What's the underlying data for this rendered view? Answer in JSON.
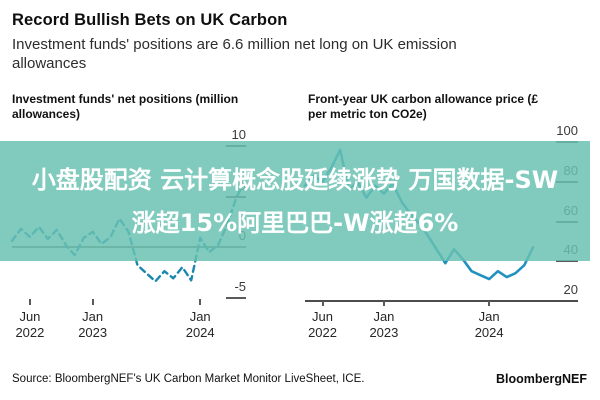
{
  "header": {
    "title": "Record Bullish Bets on UK Carbon",
    "subtitle": "Investment funds' positions are 6.6 million net long on UK emission\nallowances"
  },
  "overlay": {
    "line1": "小盘股配资 云计算概念股延续涨势 万国数据-SW",
    "line2": "涨超15%阿里巴巴-W涨超6%",
    "background_color": "#81cbbe",
    "text_color": "#ffffff"
  },
  "footer": {
    "source": "Source: BloombergNEF's UK Carbon Market Monitor LiveSheet, ICE.",
    "brand": "BloombergNEF"
  },
  "chart_data": [
    {
      "type": "line",
      "style": "dashed",
      "title": "Investment funds' net positions (million\nallowances)",
      "line_color": "#1b87ae",
      "x": [
        "Apr 2022",
        "May 2022",
        "Jun 2022",
        "Jul 2022",
        "Aug 2022",
        "Sep 2022",
        "Oct 2022",
        "Nov 2022",
        "Dec 2022",
        "Jan 2023",
        "Feb 2023",
        "Mar 2023",
        "Apr 2023",
        "May 2023",
        "Jun 2023",
        "Jul 2023",
        "Aug 2023",
        "Sep 2023",
        "Oct 2023",
        "Nov 2023",
        "Dec 2023",
        "Jan 2024",
        "Feb 2024",
        "Mar 2024",
        "Apr 2024",
        "May 2024",
        "Jun 2024"
      ],
      "values": [
        0.6,
        1.8,
        1.0,
        2.0,
        0.8,
        1.7,
        0.2,
        -0.8,
        0.9,
        1.5,
        0.3,
        1.0,
        2.8,
        1.5,
        -1.8,
        -2.6,
        -3.4,
        -2.4,
        -3.1,
        -2.0,
        -3.3,
        0.9,
        -0.5,
        0.2,
        2.2,
        4.8,
        6.6
      ],
      "latest_value": 6.6,
      "ylim": [
        -6,
        11
      ],
      "grid": false,
      "zero_line": true,
      "yticks": [
        {
          "label": "10",
          "value": 10,
          "tick": true
        },
        {
          "label": "5",
          "value": 5,
          "tick": true
        },
        {
          "label": "0",
          "value": 0,
          "tick": false
        },
        {
          "label": "-5",
          "value": -5,
          "tick": true
        }
      ],
      "xticks": [
        {
          "label": "Jun\n2022",
          "month_index": 2
        },
        {
          "label": "Jan\n2023",
          "month_index": 9
        },
        {
          "label": "Jan\n2024",
          "month_index": 21
        }
      ]
    },
    {
      "type": "line",
      "style": "solid",
      "title": "Front-year UK carbon allowance price (£\nper metric ton CO2e)",
      "line_color": "#2191c0",
      "x": [
        "Apr 2022",
        "May 2022",
        "Jun 2022",
        "Jul 2022",
        "Aug 2022",
        "Sep 2022",
        "Oct 2022",
        "Nov 2022",
        "Dec 2022",
        "Jan 2023",
        "Feb 2023",
        "Mar 2023",
        "Apr 2023",
        "May 2023",
        "Jun 2023",
        "Jul 2023",
        "Aug 2023",
        "Sep 2023",
        "Oct 2023",
        "Nov 2023",
        "Dec 2023",
        "Jan 2024",
        "Feb 2024",
        "Mar 2024",
        "Apr 2024",
        "May 2024",
        "Jun 2024"
      ],
      "values": [
        78,
        83,
        80,
        87,
        96,
        76,
        80,
        72,
        78,
        74,
        79,
        70,
        64,
        59,
        53,
        46,
        39,
        46,
        41,
        35,
        33,
        31,
        35,
        32,
        34,
        38,
        47
      ],
      "ylim": [
        20,
        105
      ],
      "grid": false,
      "bottom_axis": true,
      "yticks": [
        {
          "label": "100",
          "value": 100,
          "tick": true
        },
        {
          "label": "80",
          "value": 80,
          "tick": true
        },
        {
          "label": "60",
          "value": 60,
          "tick": true
        },
        {
          "label": "40",
          "value": 40,
          "tick": true
        },
        {
          "label": "20",
          "value": 20,
          "tick": false
        }
      ],
      "xticks": [
        {
          "label": "Jun\n2022",
          "month_index": 2
        },
        {
          "label": "Jan\n2023",
          "month_index": 9
        },
        {
          "label": "Jan\n2024",
          "month_index": 21
        }
      ]
    }
  ]
}
